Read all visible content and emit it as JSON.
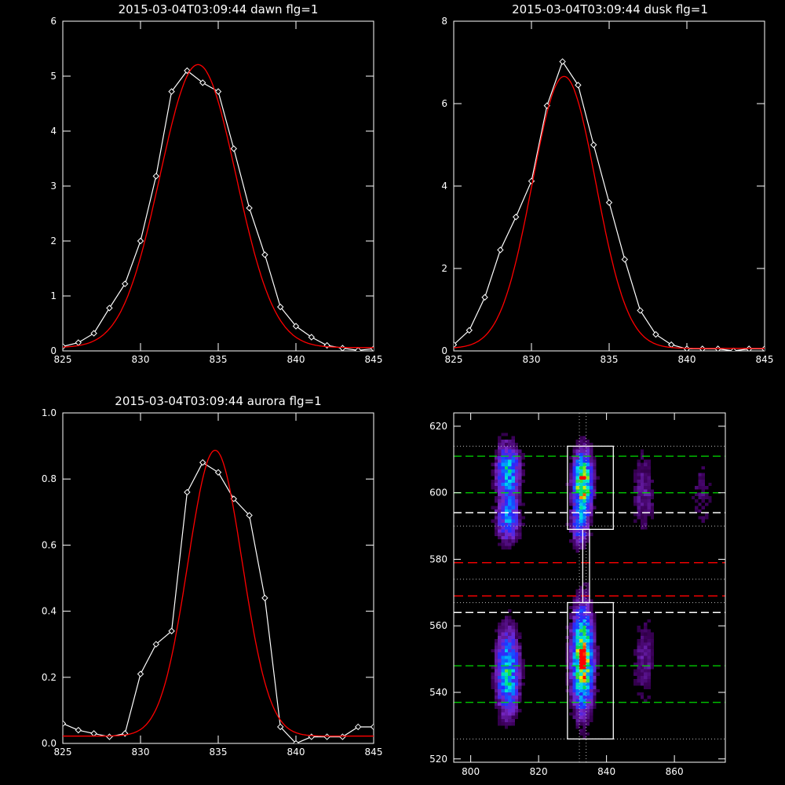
{
  "colors": {
    "background": "#000000",
    "axes": "#ffffff",
    "data": "#ffffff",
    "fit": "#ff0000",
    "green": "#00dd00",
    "white_dash": "#ffffff",
    "red_dash": "#ee0000"
  },
  "chart_data": [
    {
      "type": "line",
      "title": "2015-03-04T03:09:44 dawn flg=1",
      "xlim": [
        825,
        845
      ],
      "ylim": [
        0,
        6
      ],
      "xticks": [
        825,
        830,
        835,
        840,
        845
      ],
      "yticks": [
        0,
        1,
        2,
        3,
        4,
        5,
        6
      ],
      "series": [
        {
          "style": "data-diamonds",
          "x": [
            825,
            826,
            827,
            828,
            829,
            830,
            831,
            832,
            833,
            834,
            835,
            836,
            837,
            838,
            839,
            840,
            841,
            842,
            843,
            844,
            845
          ],
          "y": [
            0.08,
            0.15,
            0.32,
            0.78,
            1.22,
            2.0,
            3.18,
            4.72,
            5.1,
            4.88,
            4.72,
            3.68,
            2.6,
            1.75,
            0.8,
            0.45,
            0.25,
            0.1,
            0.05,
            0.01,
            0.04
          ]
        },
        {
          "style": "gaussian-fit",
          "amplitude": 5.15,
          "center": 833.7,
          "sigma": 2.45,
          "offset": 0.06
        }
      ]
    },
    {
      "type": "line",
      "title": "2015-03-04T03:09:44 dusk flg=1",
      "xlim": [
        825,
        845
      ],
      "ylim": [
        0,
        8
      ],
      "xticks": [
        825,
        830,
        835,
        840,
        845
      ],
      "yticks": [
        0,
        2,
        4,
        6,
        8
      ],
      "series": [
        {
          "style": "data-diamonds",
          "x": [
            825,
            826,
            827,
            828,
            829,
            830,
            831,
            832,
            833,
            834,
            835,
            836,
            837,
            838,
            839,
            840,
            841,
            842,
            843,
            844,
            845
          ],
          "y": [
            0.15,
            0.5,
            1.3,
            2.45,
            3.25,
            4.12,
            5.95,
            7.02,
            6.45,
            5.0,
            3.6,
            2.22,
            0.98,
            0.4,
            0.15,
            0.05,
            0.05,
            0.05,
            0.0,
            0.05,
            0.05
          ]
        },
        {
          "style": "gaussian-fit",
          "amplitude": 6.6,
          "center": 832.1,
          "sigma": 2.05,
          "offset": 0.06
        }
      ]
    },
    {
      "type": "line",
      "title": "2015-03-04T03:09:44 aurora flg=1",
      "xlim": [
        825,
        845
      ],
      "ylim": [
        0,
        1.0
      ],
      "xticks": [
        825,
        830,
        835,
        840,
        845
      ],
      "yticks": [
        0,
        0.2,
        0.4,
        0.6,
        0.8,
        1.0
      ],
      "series": [
        {
          "style": "data-diamonds",
          "x": [
            825,
            826,
            827,
            828,
            829,
            830,
            831,
            832,
            833,
            834,
            835,
            836,
            837,
            838,
            839,
            840,
            841,
            842,
            843,
            844,
            845
          ],
          "y": [
            0.06,
            0.04,
            0.03,
            0.02,
            0.03,
            0.21,
            0.3,
            0.34,
            0.76,
            0.85,
            0.82,
            0.74,
            0.69,
            0.44,
            0.05,
            0.0,
            0.02,
            0.02,
            0.02,
            0.05,
            0.05
          ]
        },
        {
          "style": "gaussian-fit",
          "amplitude": 0.865,
          "center": 834.8,
          "sigma": 1.75,
          "offset": 0.022
        }
      ]
    },
    {
      "type": "heatmap",
      "title": "",
      "xlim": [
        795,
        875
      ],
      "ylim": [
        519,
        624
      ],
      "xticks": [
        800,
        820,
        840,
        860
      ],
      "yticks": [
        520,
        540,
        560,
        580,
        600,
        620
      ],
      "colormap": "rainbow (black-purple-blue-cyan-green-yellow-red)",
      "blobs": [
        {
          "x": 811,
          "y": 606,
          "sx": 2.2,
          "sy": 5.5,
          "amp": 0.55
        },
        {
          "x": 811,
          "y": 592,
          "sx": 2.2,
          "sy": 4.5,
          "amp": 0.42
        },
        {
          "x": 811,
          "y": 546,
          "sx": 2.2,
          "sy": 8.0,
          "amp": 0.6
        },
        {
          "x": 833,
          "y": 603,
          "sx": 1.8,
          "sy": 6.0,
          "amp": 0.88
        },
        {
          "x": 832,
          "y": 590,
          "sx": 1.6,
          "sy": 4.0,
          "amp": 0.35
        },
        {
          "x": 833,
          "y": 550,
          "sx": 2.0,
          "sy": 9.5,
          "amp": 0.95
        },
        {
          "x": 851,
          "y": 600,
          "sx": 2.2,
          "sy": 8.0,
          "amp": 0.15
        },
        {
          "x": 851,
          "y": 550,
          "sx": 2.2,
          "sy": 8.0,
          "amp": 0.14
        },
        {
          "x": 868,
          "y": 600,
          "sx": 2.0,
          "sy": 8.0,
          "amp": 0.1
        }
      ],
      "boxes": [
        {
          "x0": 828.5,
          "x1": 842,
          "y0": 589,
          "y1": 614
        },
        {
          "x0": 828.5,
          "x1": 842,
          "y0": 526,
          "y1": 567
        },
        {
          "x0": 833,
          "x1": 835,
          "y0": 567,
          "y1": 589
        }
      ],
      "vlines_dotted": [
        832,
        834
      ],
      "hlines": [
        {
          "y": 611,
          "style": "green-dash"
        },
        {
          "y": 600,
          "style": "green-dash"
        },
        {
          "y": 548,
          "style": "green-dash"
        },
        {
          "y": 537,
          "style": "green-dash"
        },
        {
          "y": 594,
          "style": "white-dash"
        },
        {
          "y": 564,
          "style": "white-dash"
        },
        {
          "y": 579,
          "style": "red-dash"
        },
        {
          "y": 569,
          "style": "red-dash"
        },
        {
          "y": 614,
          "style": "white-dot"
        },
        {
          "y": 590,
          "style": "white-dot"
        },
        {
          "y": 574,
          "style": "white-dot"
        },
        {
          "y": 567,
          "style": "white-dot"
        },
        {
          "y": 526,
          "style": "white-dot"
        }
      ]
    }
  ]
}
